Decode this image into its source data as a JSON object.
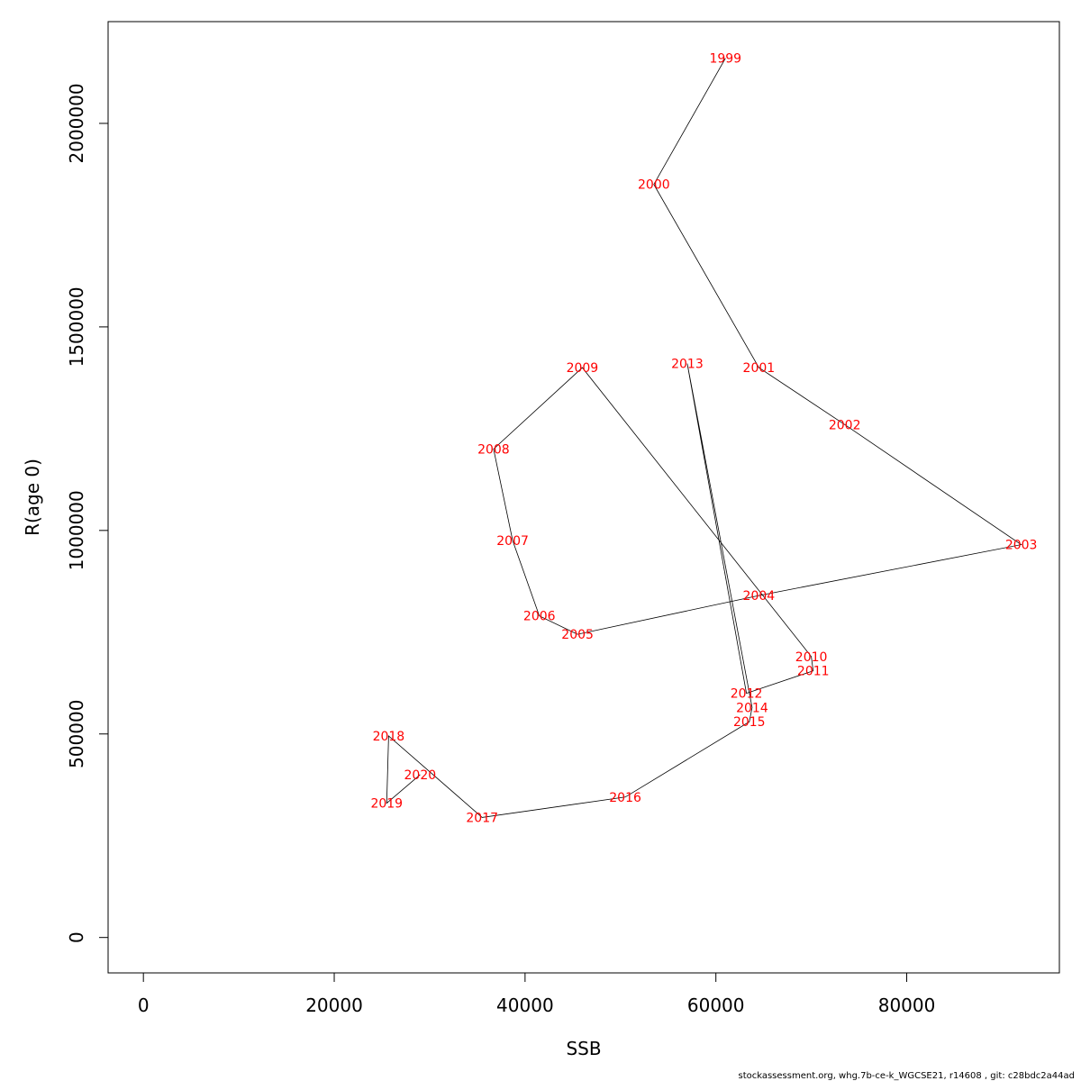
{
  "chart_data": {
    "type": "line",
    "xlabel": "SSB",
    "ylabel": "R(age 0)",
    "xlim": [
      -3700,
      96000
    ],
    "ylim": [
      -87000,
      2250000
    ],
    "x_ticks": [
      0,
      20000,
      40000,
      60000,
      80000
    ],
    "x_tick_labels": [
      "0",
      "20000",
      "40000",
      "60000",
      "80000"
    ],
    "y_ticks": [
      0,
      500000,
      1000000,
      1500000,
      2000000
    ],
    "y_tick_labels": [
      "0",
      "500000",
      "1000000",
      "1500000",
      "2000000"
    ],
    "grid": false,
    "line_color": "#000000",
    "label_color": "#ff0000",
    "points": [
      {
        "label": "1999",
        "x": 61000,
        "y": 2160000
      },
      {
        "label": "2000",
        "x": 53500,
        "y": 1850000
      },
      {
        "label": "2001",
        "x": 64500,
        "y": 1400000
      },
      {
        "label": "2002",
        "x": 73500,
        "y": 1260000
      },
      {
        "label": "2003",
        "x": 92000,
        "y": 965000
      },
      {
        "label": "2004",
        "x": 64500,
        "y": 840000
      },
      {
        "label": "2005",
        "x": 45500,
        "y": 745000
      },
      {
        "label": "2006",
        "x": 41500,
        "y": 790000
      },
      {
        "label": "2007",
        "x": 38700,
        "y": 975000
      },
      {
        "label": "2008",
        "x": 36700,
        "y": 1200000
      },
      {
        "label": "2009",
        "x": 46000,
        "y": 1400000
      },
      {
        "label": "2010",
        "x": 70000,
        "y": 690000
      },
      {
        "label": "2011",
        "x": 70200,
        "y": 655000
      },
      {
        "label": "2012",
        "x": 63200,
        "y": 600000
      },
      {
        "label": "2013",
        "x": 57000,
        "y": 1410000
      },
      {
        "label": "2014",
        "x": 63800,
        "y": 565000
      },
      {
        "label": "2015",
        "x": 63500,
        "y": 530000
      },
      {
        "label": "2016",
        "x": 50500,
        "y": 345000
      },
      {
        "label": "2017",
        "x": 35500,
        "y": 295000
      },
      {
        "label": "2018",
        "x": 25700,
        "y": 495000
      },
      {
        "label": "2019",
        "x": 25500,
        "y": 330000
      },
      {
        "label": "2020",
        "x": 29000,
        "y": 400000
      }
    ]
  },
  "footer": {
    "text": "stockassessment.org, whg.7b-ce-k_WGCSE21, r14608 , git: c28bdc2a44ad"
  }
}
